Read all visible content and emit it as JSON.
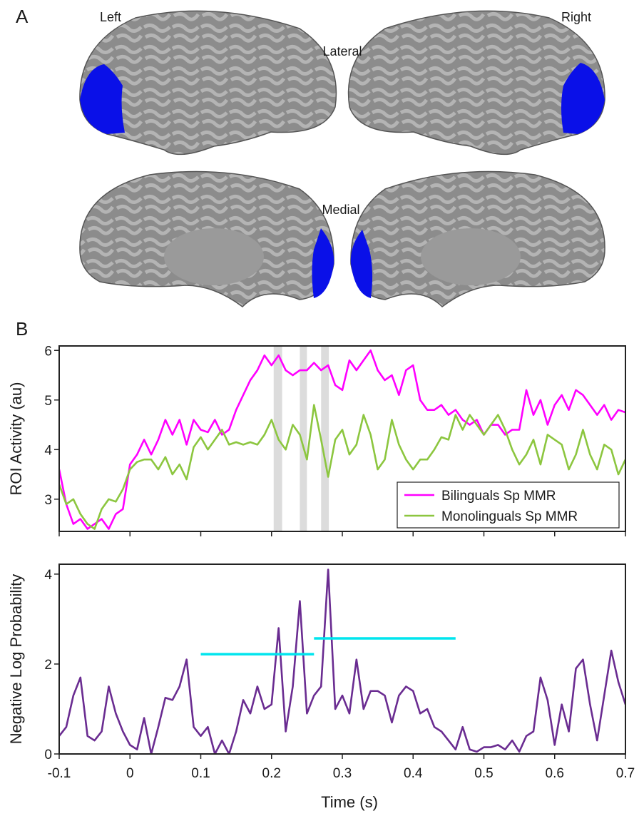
{
  "figure": {
    "panel_a": "A",
    "left": "Left",
    "right": "Right",
    "lateral": "Lateral",
    "medial": "Medial",
    "panel_b": "B"
  },
  "chart_data": [
    {
      "type": "line",
      "ylabel": "ROI Activity (au)",
      "x": [
        -0.1,
        -0.09,
        -0.08,
        -0.07,
        -0.06,
        -0.05,
        -0.04,
        -0.03,
        -0.02,
        -0.01,
        0,
        0.01,
        0.02,
        0.03,
        0.04,
        0.05,
        0.06,
        0.07,
        0.08,
        0.09,
        0.1,
        0.11,
        0.12,
        0.13,
        0.14,
        0.15,
        0.16,
        0.17,
        0.18,
        0.19,
        0.2,
        0.21,
        0.22,
        0.23,
        0.24,
        0.25,
        0.26,
        0.27,
        0.28,
        0.29,
        0.3,
        0.31,
        0.32,
        0.33,
        0.34,
        0.35,
        0.36,
        0.37,
        0.38,
        0.39,
        0.4,
        0.41,
        0.42,
        0.43,
        0.44,
        0.45,
        0.46,
        0.47,
        0.48,
        0.49,
        0.5,
        0.51,
        0.52,
        0.53,
        0.54,
        0.55,
        0.56,
        0.57,
        0.58,
        0.59,
        0.6,
        0.61,
        0.62,
        0.63,
        0.64,
        0.65,
        0.66,
        0.67,
        0.68,
        0.69,
        0.7
      ],
      "series": [
        {
          "name": "Bilinguals Sp MMR",
          "color": "#ff00ff",
          "values": [
            3.6,
            2.9,
            2.5,
            2.6,
            2.4,
            2.5,
            2.6,
            2.4,
            2.7,
            2.8,
            3.7,
            3.9,
            4.2,
            3.9,
            4.2,
            4.6,
            4.3,
            4.6,
            4.1,
            4.6,
            4.4,
            4.35,
            4.6,
            4.3,
            4.4,
            4.8,
            5.1,
            5.4,
            5.6,
            5.9,
            5.7,
            5.9,
            5.6,
            5.5,
            5.6,
            5.6,
            5.75,
            5.6,
            5.7,
            5.3,
            5.2,
            5.8,
            5.6,
            5.8,
            6.0,
            5.6,
            5.4,
            5.5,
            5.1,
            5.6,
            5.7,
            5.0,
            4.8,
            4.8,
            4.9,
            4.7,
            4.8,
            4.6,
            4.5,
            4.6,
            4.3,
            4.5,
            4.5,
            4.3,
            4.4,
            4.4,
            5.2,
            4.7,
            5.0,
            4.5,
            4.9,
            5.1,
            4.8,
            5.2,
            5.1,
            4.9,
            4.7,
            4.9,
            4.6,
            4.8,
            4.75
          ]
        },
        {
          "name": "Monolinguals Sp MMR",
          "color": "#8cc63f",
          "values": [
            3.3,
            2.9,
            3.0,
            2.7,
            2.5,
            2.4,
            2.8,
            3.0,
            2.95,
            3.2,
            3.6,
            3.75,
            3.8,
            3.8,
            3.6,
            3.85,
            3.5,
            3.7,
            3.4,
            4.05,
            4.25,
            4.0,
            4.2,
            4.4,
            4.1,
            4.15,
            4.1,
            4.15,
            4.1,
            4.3,
            4.6,
            4.2,
            4.0,
            4.5,
            4.3,
            3.8,
            4.9,
            4.2,
            3.45,
            4.2,
            4.4,
            3.9,
            4.1,
            4.7,
            4.3,
            3.6,
            3.8,
            4.6,
            4.1,
            3.8,
            3.6,
            3.8,
            3.8,
            4.0,
            4.25,
            4.2,
            4.7,
            4.4,
            4.7,
            4.5,
            4.3,
            4.5,
            4.7,
            4.4,
            4.0,
            3.7,
            3.9,
            4.2,
            3.7,
            4.3,
            4.2,
            4.1,
            3.6,
            3.9,
            4.4,
            3.9,
            3.6,
            4.1,
            4.0,
            3.5,
            3.8
          ]
        }
      ],
      "shaded_regions": [
        [
          0.203,
          0.215
        ],
        [
          0.24,
          0.25
        ],
        [
          0.27,
          0.281
        ]
      ],
      "xlim": [
        -0.1,
        0.7
      ],
      "ylim": [
        2.35,
        6.09
      ],
      "yticks": [
        3,
        4,
        5,
        6
      ],
      "legend": "lower right"
    },
    {
      "type": "line",
      "ylabel": "Negative Log Probability",
      "xlabel": "Time (s)",
      "x": [
        -0.1,
        -0.09,
        -0.08,
        -0.07,
        -0.06,
        -0.05,
        -0.04,
        -0.03,
        -0.02,
        -0.01,
        0,
        0.01,
        0.02,
        0.03,
        0.04,
        0.05,
        0.06,
        0.07,
        0.08,
        0.09,
        0.1,
        0.11,
        0.12,
        0.13,
        0.14,
        0.15,
        0.16,
        0.17,
        0.18,
        0.19,
        0.2,
        0.21,
        0.22,
        0.23,
        0.24,
        0.25,
        0.26,
        0.27,
        0.28,
        0.29,
        0.3,
        0.31,
        0.32,
        0.33,
        0.34,
        0.35,
        0.36,
        0.37,
        0.38,
        0.39,
        0.4,
        0.41,
        0.42,
        0.43,
        0.44,
        0.45,
        0.46,
        0.47,
        0.48,
        0.49,
        0.5,
        0.51,
        0.52,
        0.53,
        0.54,
        0.55,
        0.56,
        0.57,
        0.58,
        0.59,
        0.6,
        0.61,
        0.62,
        0.63,
        0.64,
        0.65,
        0.66,
        0.67,
        0.68,
        0.69,
        0.7
      ],
      "series": [
        {
          "color": "#6a2c91",
          "values": [
            0.4,
            0.6,
            1.3,
            1.7,
            0.4,
            0.3,
            0.5,
            1.5,
            0.9,
            0.5,
            0.2,
            0.1,
            0.8,
            0.0,
            0.6,
            1.25,
            1.2,
            1.5,
            2.1,
            0.6,
            0.4,
            0.6,
            0.0,
            0.3,
            0.0,
            0.5,
            1.2,
            0.9,
            1.5,
            1.0,
            1.1,
            2.8,
            0.5,
            1.5,
            3.4,
            0.9,
            1.3,
            1.5,
            4.1,
            1.0,
            1.3,
            0.9,
            2.1,
            1.0,
            1.4,
            1.4,
            1.3,
            0.7,
            1.3,
            1.5,
            1.4,
            0.9,
            1.0,
            0.6,
            0.5,
            0.3,
            0.1,
            0.6,
            0.1,
            0.05,
            0.15,
            0.15,
            0.2,
            0.1,
            0.3,
            0.05,
            0.4,
            0.5,
            1.7,
            1.2,
            0.2,
            1.1,
            0.5,
            1.9,
            2.1,
            1.1,
            0.3,
            1.3,
            2.3,
            1.6,
            1.1
          ]
        }
      ],
      "segments": [
        {
          "x": [
            0.1,
            0.26
          ],
          "y": 2.22,
          "color": "#00e5ee"
        },
        {
          "x": [
            0.26,
            0.46
          ],
          "y": 2.57,
          "color": "#00e5ee"
        }
      ],
      "xlim": [
        -0.1,
        0.7
      ],
      "ylim": [
        0,
        4.22
      ],
      "yticks": [
        0,
        2,
        4
      ],
      "xticks": [
        -0.1,
        0,
        0.1,
        0.2,
        0.3,
        0.4,
        0.5,
        0.6,
        0.7
      ]
    }
  ]
}
